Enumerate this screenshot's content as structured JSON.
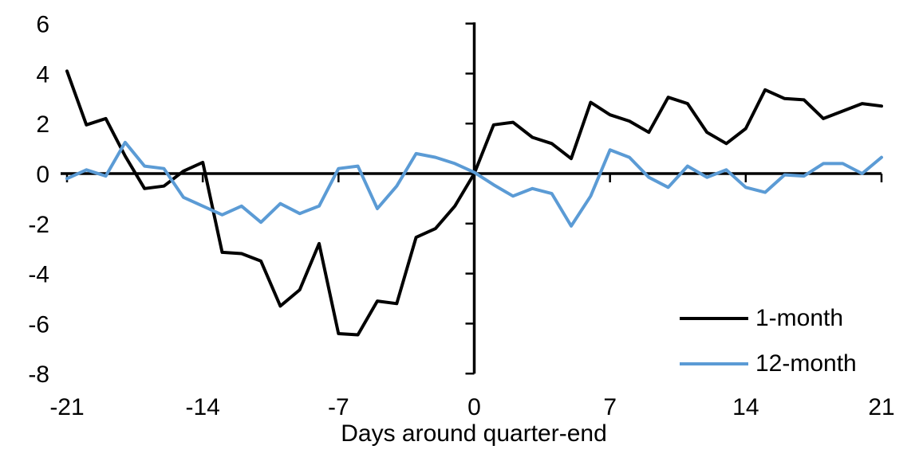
{
  "chart_data": {
    "type": "line",
    "title": "",
    "xlabel": "Days around quarter-end",
    "ylabel": "",
    "grid": false,
    "legend_position": "inside-bottom-right",
    "xlim": [
      -21,
      21
    ],
    "ylim": [
      -8,
      6
    ],
    "xticks": [
      -21,
      -14,
      -7,
      0,
      7,
      14,
      21
    ],
    "yticks": [
      6,
      4,
      2,
      0,
      -2,
      -4,
      -6,
      -8
    ],
    "axis_color": "#000000",
    "x": [
      -21,
      -20,
      -19,
      -18,
      -17,
      -16,
      -15,
      -14,
      -13,
      -12,
      -11,
      -10,
      -9,
      -8,
      -7,
      -6,
      -5,
      -4,
      -3,
      -2,
      -1,
      0,
      1,
      2,
      3,
      4,
      5,
      6,
      7,
      8,
      9,
      10,
      11,
      12,
      13,
      14,
      15,
      16,
      17,
      18,
      19,
      20,
      21
    ],
    "series": [
      {
        "name": "1-month",
        "color": "#000000",
        "values": [
          4.1,
          1.95,
          2.2,
          0.7,
          -0.6,
          -0.5,
          0.1,
          0.45,
          -3.15,
          -3.2,
          -3.5,
          -5.3,
          -4.65,
          -2.8,
          -6.4,
          -6.45,
          -5.1,
          -5.2,
          -2.55,
          -2.2,
          -1.3,
          0,
          1.95,
          2.05,
          1.45,
          1.2,
          0.6,
          2.85,
          2.35,
          2.1,
          1.65,
          3.05,
          2.8,
          1.65,
          1.2,
          1.8,
          3.35,
          3.0,
          2.95,
          2.2,
          2.5,
          2.8,
          2.7
        ]
      },
      {
        "name": "12-month",
        "color": "#5B9BD5",
        "values": [
          -0.2,
          0.15,
          -0.1,
          1.25,
          0.3,
          0.2,
          -0.95,
          -1.3,
          -1.65,
          -1.3,
          -1.95,
          -1.2,
          -1.6,
          -1.3,
          0.2,
          0.3,
          -1.4,
          -0.5,
          0.8,
          0.65,
          0.4,
          0.05,
          -0.45,
          -0.9,
          -0.6,
          -0.8,
          -2.1,
          -0.9,
          0.95,
          0.65,
          -0.15,
          -0.55,
          0.3,
          -0.15,
          0.15,
          -0.55,
          -0.75,
          -0.05,
          -0.1,
          0.4,
          0.4,
          0.0,
          0.65
        ]
      }
    ]
  }
}
